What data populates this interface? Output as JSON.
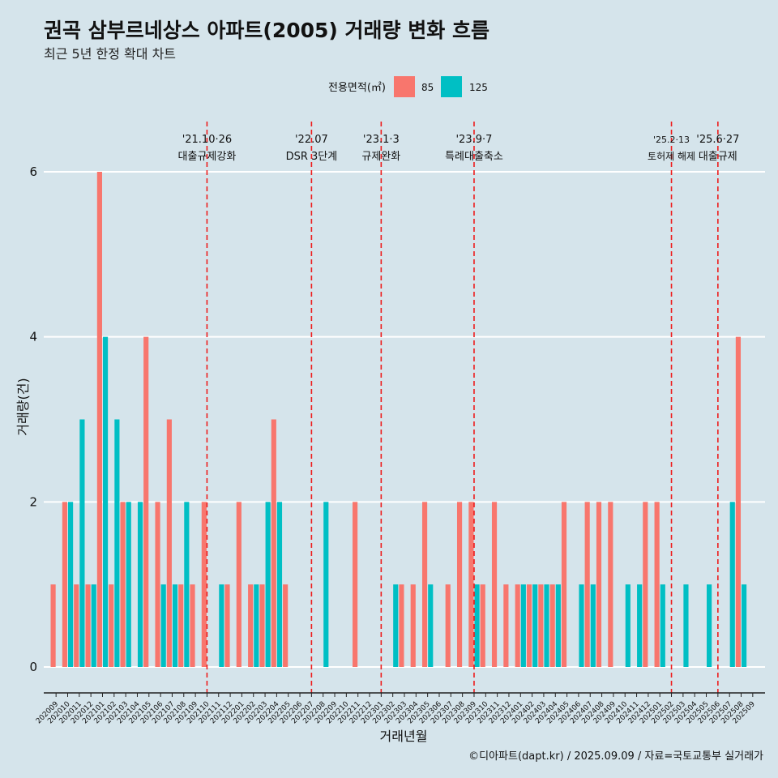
{
  "title": "권곡 삼부르네상스 아파트(2005) 거래량 변화 흐름",
  "subtitle": "최근 5년 한정 확대 차트",
  "caption": "©디아파트(dapt.kr) / 2025.09.09 / 자료=국토교통부 실거래가",
  "colors": {
    "s85": "#f8766d",
    "s125": "#00bfc4",
    "vline": "#ee1c1c",
    "grid": "#ffffff"
  },
  "chart_data": {
    "type": "bar",
    "title": "권곡 삼부르네상스 아파트(2005) 거래량 변화 흐름",
    "xlabel": "거래년월",
    "ylabel": "거래량(건)",
    "ylim": [
      0,
      6
    ],
    "yticks": [
      0,
      2,
      4,
      6
    ],
    "legend": {
      "title": "전용면적(㎡)",
      "position": "top"
    },
    "categories": [
      "202009",
      "202010",
      "202011",
      "202012",
      "202101",
      "202102",
      "202103",
      "202104",
      "202105",
      "202106",
      "202107",
      "202108",
      "202109",
      "202110",
      "202111",
      "202112",
      "202201",
      "202202",
      "202203",
      "202204",
      "202205",
      "202206",
      "202207",
      "202208",
      "202209",
      "202210",
      "202211",
      "202212",
      "202301",
      "202302",
      "202303",
      "202304",
      "202305",
      "202306",
      "202307",
      "202308",
      "202309",
      "202310",
      "202311",
      "202312",
      "202401",
      "202402",
      "202403",
      "202404",
      "202405",
      "202406",
      "202407",
      "202408",
      "202409",
      "202410",
      "202411",
      "202412",
      "202501",
      "202502",
      "202503",
      "202504",
      "202505",
      "202506",
      "202507",
      "202508",
      "202509"
    ],
    "series": [
      {
        "name": "85",
        "values": [
          1,
          2,
          1,
          1,
          6,
          1,
          2,
          0,
          4,
          2,
          3,
          1,
          1,
          2,
          0,
          1,
          2,
          1,
          1,
          3,
          1,
          0,
          0,
          0,
          0,
          0,
          2,
          0,
          0,
          0,
          1,
          1,
          2,
          0,
          1,
          2,
          2,
          1,
          2,
          1,
          1,
          1,
          1,
          1,
          2,
          0,
          2,
          2,
          2,
          0,
          0,
          2,
          2,
          0,
          0,
          0,
          0,
          0,
          0,
          4,
          0
        ]
      },
      {
        "name": "125",
        "values": [
          0,
          2,
          3,
          1,
          4,
          3,
          2,
          2,
          0,
          1,
          1,
          2,
          0,
          0,
          1,
          0,
          0,
          1,
          2,
          2,
          0,
          0,
          0,
          2,
          0,
          0,
          0,
          0,
          0,
          1,
          0,
          0,
          1,
          0,
          0,
          0,
          1,
          0,
          0,
          0,
          1,
          1,
          1,
          1,
          0,
          1,
          1,
          0,
          0,
          1,
          1,
          0,
          1,
          0,
          1,
          0,
          1,
          0,
          2,
          1,
          0
        ]
      }
    ],
    "annotations": [
      {
        "category": "202110",
        "date": "'21.10·26",
        "label": "대출규제강화"
      },
      {
        "category": "202207",
        "date": "'22.07",
        "label": "DSR 3단계"
      },
      {
        "category": "202301",
        "date": "'23.1·3",
        "label": "규제완화"
      },
      {
        "category": "202309",
        "date": "'23.9·7",
        "label": "특례대출축소"
      },
      {
        "category": "202502",
        "date": "'25.2·13",
        "label": "토허제 해제"
      },
      {
        "category": "202506",
        "date": "'25.6·27",
        "label": "대출규제"
      }
    ]
  }
}
